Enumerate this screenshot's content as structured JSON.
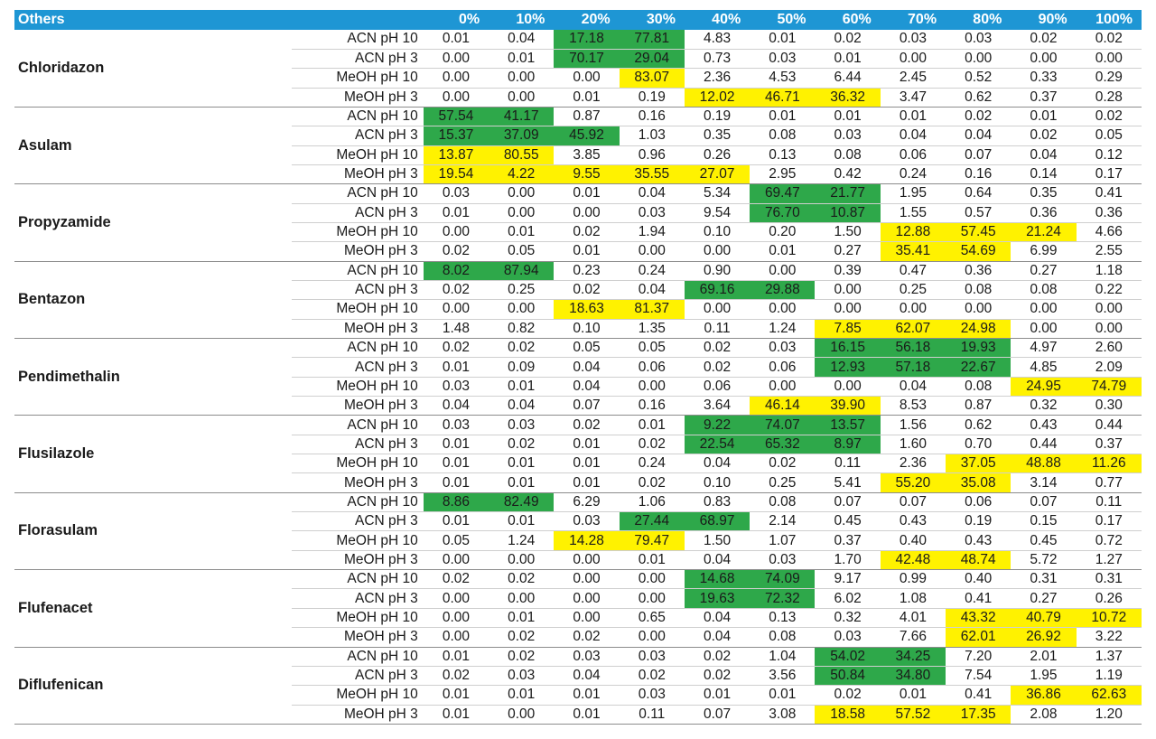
{
  "header": {
    "title": "Others",
    "columns": [
      "0%",
      "10%",
      "20%",
      "30%",
      "40%",
      "50%",
      "60%",
      "70%",
      "80%",
      "90%",
      "100%"
    ]
  },
  "colors": {
    "header_bg": "#1e96d4",
    "green_highlight": "#2ea84a",
    "yellow_highlight": "#fff200"
  },
  "compounds": [
    {
      "name": "Chloridazon",
      "rows": [
        {
          "condition": "ACN pH 10",
          "values": [
            "0.01",
            "0.04",
            "17.18",
            "77.81",
            "4.83",
            "0.01",
            "0.02",
            "0.03",
            "0.03",
            "0.02",
            "0.02"
          ],
          "highlight": [
            "",
            "",
            "g",
            "g",
            "",
            "",
            "",
            "",
            "",
            "",
            ""
          ]
        },
        {
          "condition": "ACN pH 3",
          "values": [
            "0.00",
            "0.01",
            "70.17",
            "29.04",
            "0.73",
            "0.03",
            "0.01",
            "0.00",
            "0.00",
            "0.00",
            "0.00"
          ],
          "highlight": [
            "",
            "",
            "g",
            "g",
            "",
            "",
            "",
            "",
            "",
            "",
            ""
          ]
        },
        {
          "condition": "MeOH pH 10",
          "values": [
            "0.00",
            "0.00",
            "0.00",
            "83.07",
            "2.36",
            "4.53",
            "6.44",
            "2.45",
            "0.52",
            "0.33",
            "0.29"
          ],
          "highlight": [
            "",
            "",
            "",
            "y",
            "",
            "",
            "",
            "",
            "",
            "",
            ""
          ]
        },
        {
          "condition": "MeOH pH 3",
          "values": [
            "0.00",
            "0.00",
            "0.01",
            "0.19",
            "12.02",
            "46.71",
            "36.32",
            "3.47",
            "0.62",
            "0.37",
            "0.28"
          ],
          "highlight": [
            "",
            "",
            "",
            "",
            "y",
            "y",
            "y",
            "",
            "",
            "",
            ""
          ]
        }
      ]
    },
    {
      "name": "Asulam",
      "rows": [
        {
          "condition": "ACN pH 10",
          "values": [
            "57.54",
            "41.17",
            "0.87",
            "0.16",
            "0.19",
            "0.01",
            "0.01",
            "0.01",
            "0.02",
            "0.01",
            "0.02"
          ],
          "highlight": [
            "g",
            "g",
            "",
            "",
            "",
            "",
            "",
            "",
            "",
            "",
            ""
          ]
        },
        {
          "condition": "ACN pH 3",
          "values": [
            "15.37",
            "37.09",
            "45.92",
            "1.03",
            "0.35",
            "0.08",
            "0.03",
            "0.04",
            "0.04",
            "0.02",
            "0.05"
          ],
          "highlight": [
            "g",
            "g",
            "g",
            "",
            "",
            "",
            "",
            "",
            "",
            "",
            ""
          ]
        },
        {
          "condition": "MeOH pH 10",
          "values": [
            "13.87",
            "80.55",
            "3.85",
            "0.96",
            "0.26",
            "0.13",
            "0.08",
            "0.06",
            "0.07",
            "0.04",
            "0.12"
          ],
          "highlight": [
            "y",
            "y",
            "",
            "",
            "",
            "",
            "",
            "",
            "",
            "",
            ""
          ]
        },
        {
          "condition": "MeOH pH 3",
          "values": [
            "19.54",
            "4.22",
            "9.55",
            "35.55",
            "27.07",
            "2.95",
            "0.42",
            "0.24",
            "0.16",
            "0.14",
            "0.17"
          ],
          "highlight": [
            "y",
            "y",
            "y",
            "y",
            "y",
            "",
            "",
            "",
            "",
            "",
            ""
          ]
        }
      ]
    },
    {
      "name": "Propyzamide",
      "rows": [
        {
          "condition": "ACN pH 10",
          "values": [
            "0.03",
            "0.00",
            "0.01",
            "0.04",
            "5.34",
            "69.47",
            "21.77",
            "1.95",
            "0.64",
            "0.35",
            "0.41"
          ],
          "highlight": [
            "",
            "",
            "",
            "",
            "",
            "g",
            "g",
            "",
            "",
            "",
            ""
          ]
        },
        {
          "condition": "ACN pH 3",
          "values": [
            "0.01",
            "0.00",
            "0.00",
            "0.03",
            "9.54",
            "76.70",
            "10.87",
            "1.55",
            "0.57",
            "0.36",
            "0.36"
          ],
          "highlight": [
            "",
            "",
            "",
            "",
            "",
            "g",
            "g",
            "",
            "",
            "",
            ""
          ]
        },
        {
          "condition": "MeOH pH 10",
          "values": [
            "0.00",
            "0.01",
            "0.02",
            "1.94",
            "0.10",
            "0.20",
            "1.50",
            "12.88",
            "57.45",
            "21.24",
            "4.66"
          ],
          "highlight": [
            "",
            "",
            "",
            "",
            "",
            "",
            "",
            "y",
            "y",
            "y",
            ""
          ]
        },
        {
          "condition": "MeOH pH 3",
          "values": [
            "0.02",
            "0.05",
            "0.01",
            "0.00",
            "0.00",
            "0.01",
            "0.27",
            "35.41",
            "54.69",
            "6.99",
            "2.55"
          ],
          "highlight": [
            "",
            "",
            "",
            "",
            "",
            "",
            "",
            "y",
            "y",
            "",
            ""
          ]
        }
      ]
    },
    {
      "name": "Bentazon",
      "rows": [
        {
          "condition": "ACN pH 10",
          "values": [
            "8.02",
            "87.94",
            "0.23",
            "0.24",
            "0.90",
            "0.00",
            "0.39",
            "0.47",
            "0.36",
            "0.27",
            "1.18"
          ],
          "highlight": [
            "g",
            "g",
            "",
            "",
            "",
            "",
            "",
            "",
            "",
            "",
            ""
          ]
        },
        {
          "condition": "ACN pH 3",
          "values": [
            "0.02",
            "0.25",
            "0.02",
            "0.04",
            "69.16",
            "29.88",
            "0.00",
            "0.25",
            "0.08",
            "0.08",
            "0.22"
          ],
          "highlight": [
            "",
            "",
            "",
            "",
            "g",
            "g",
            "",
            "",
            "",
            "",
            ""
          ]
        },
        {
          "condition": "MeOH pH 10",
          "values": [
            "0.00",
            "0.00",
            "18.63",
            "81.37",
            "0.00",
            "0.00",
            "0.00",
            "0.00",
            "0.00",
            "0.00",
            "0.00"
          ],
          "highlight": [
            "",
            "",
            "y",
            "y",
            "",
            "",
            "",
            "",
            "",
            "",
            ""
          ]
        },
        {
          "condition": "MeOH pH 3",
          "values": [
            "1.48",
            "0.82",
            "0.10",
            "1.35",
            "0.11",
            "1.24",
            "7.85",
            "62.07",
            "24.98",
            "0.00",
            "0.00"
          ],
          "highlight": [
            "",
            "",
            "",
            "",
            "",
            "",
            "y",
            "y",
            "y",
            "",
            ""
          ]
        }
      ]
    },
    {
      "name": "Pendimethalin",
      "rows": [
        {
          "condition": "ACN pH 10",
          "values": [
            "0.02",
            "0.02",
            "0.05",
            "0.05",
            "0.02",
            "0.03",
            "16.15",
            "56.18",
            "19.93",
            "4.97",
            "2.60"
          ],
          "highlight": [
            "",
            "",
            "",
            "",
            "",
            "",
            "g",
            "g",
            "g",
            "",
            ""
          ]
        },
        {
          "condition": "ACN pH 3",
          "values": [
            "0.01",
            "0.09",
            "0.04",
            "0.06",
            "0.02",
            "0.06",
            "12.93",
            "57.18",
            "22.67",
            "4.85",
            "2.09"
          ],
          "highlight": [
            "",
            "",
            "",
            "",
            "",
            "",
            "g",
            "g",
            "g",
            "",
            ""
          ]
        },
        {
          "condition": "MeOH pH 10",
          "values": [
            "0.03",
            "0.01",
            "0.04",
            "0.00",
            "0.06",
            "0.00",
            "0.00",
            "0.04",
            "0.08",
            "24.95",
            "74.79"
          ],
          "highlight": [
            "",
            "",
            "",
            "",
            "",
            "",
            "",
            "",
            "",
            "y",
            "y"
          ]
        },
        {
          "condition": "MeOH pH 3",
          "values": [
            "0.04",
            "0.04",
            "0.07",
            "0.16",
            "3.64",
            "46.14",
            "39.90",
            "8.53",
            "0.87",
            "0.32",
            "0.30"
          ],
          "highlight": [
            "",
            "",
            "",
            "",
            "",
            "y",
            "y",
            "",
            "",
            "",
            ""
          ]
        }
      ]
    },
    {
      "name": "Flusilazole",
      "rows": [
        {
          "condition": "ACN pH 10",
          "values": [
            "0.03",
            "0.03",
            "0.02",
            "0.01",
            "9.22",
            "74.07",
            "13.57",
            "1.56",
            "0.62",
            "0.43",
            "0.44"
          ],
          "highlight": [
            "",
            "",
            "",
            "",
            "g",
            "g",
            "g",
            "",
            "",
            "",
            ""
          ]
        },
        {
          "condition": "ACN pH 3",
          "values": [
            "0.01",
            "0.02",
            "0.01",
            "0.02",
            "22.54",
            "65.32",
            "8.97",
            "1.60",
            "0.70",
            "0.44",
            "0.37"
          ],
          "highlight": [
            "",
            "",
            "",
            "",
            "g",
            "g",
            "g",
            "",
            "",
            "",
            ""
          ]
        },
        {
          "condition": "MeOH pH 10",
          "values": [
            "0.01",
            "0.01",
            "0.01",
            "0.24",
            "0.04",
            "0.02",
            "0.11",
            "2.36",
            "37.05",
            "48.88",
            "11.26"
          ],
          "highlight": [
            "",
            "",
            "",
            "",
            "",
            "",
            "",
            "",
            "y",
            "y",
            "y"
          ]
        },
        {
          "condition": "MeOH pH 3",
          "values": [
            "0.01",
            "0.01",
            "0.01",
            "0.02",
            "0.10",
            "0.25",
            "5.41",
            "55.20",
            "35.08",
            "3.14",
            "0.77"
          ],
          "highlight": [
            "",
            "",
            "",
            "",
            "",
            "",
            "",
            "y",
            "y",
            "",
            ""
          ]
        }
      ]
    },
    {
      "name": "Florasulam",
      "rows": [
        {
          "condition": "ACN pH 10",
          "values": [
            "8.86",
            "82.49",
            "6.29",
            "1.06",
            "0.83",
            "0.08",
            "0.07",
            "0.07",
            "0.06",
            "0.07",
            "0.11"
          ],
          "highlight": [
            "g",
            "g",
            "",
            "",
            "",
            "",
            "",
            "",
            "",
            "",
            ""
          ]
        },
        {
          "condition": "ACN pH 3",
          "values": [
            "0.01",
            "0.01",
            "0.03",
            "27.44",
            "68.97",
            "2.14",
            "0.45",
            "0.43",
            "0.19",
            "0.15",
            "0.17"
          ],
          "highlight": [
            "",
            "",
            "",
            "g",
            "g",
            "",
            "",
            "",
            "",
            "",
            ""
          ]
        },
        {
          "condition": "MeOH pH 10",
          "values": [
            "0.05",
            "1.24",
            "14.28",
            "79.47",
            "1.50",
            "1.07",
            "0.37",
            "0.40",
            "0.43",
            "0.45",
            "0.72"
          ],
          "highlight": [
            "",
            "",
            "y",
            "y",
            "",
            "",
            "",
            "",
            "",
            "",
            ""
          ]
        },
        {
          "condition": "MeOH pH 3",
          "values": [
            "0.00",
            "0.00",
            "0.00",
            "0.01",
            "0.04",
            "0.03",
            "1.70",
            "42.48",
            "48.74",
            "5.72",
            "1.27"
          ],
          "highlight": [
            "",
            "",
            "",
            "",
            "",
            "",
            "",
            "y",
            "y",
            "",
            ""
          ]
        }
      ]
    },
    {
      "name": "Flufenacet",
      "rows": [
        {
          "condition": "ACN pH 10",
          "values": [
            "0.02",
            "0.02",
            "0.00",
            "0.00",
            "14.68",
            "74.09",
            "9.17",
            "0.99",
            "0.40",
            "0.31",
            "0.31"
          ],
          "highlight": [
            "",
            "",
            "",
            "",
            "g",
            "g",
            "",
            "",
            "",
            "",
            ""
          ]
        },
        {
          "condition": "ACN pH 3",
          "values": [
            "0.00",
            "0.00",
            "0.00",
            "0.00",
            "19.63",
            "72.32",
            "6.02",
            "1.08",
            "0.41",
            "0.27",
            "0.26"
          ],
          "highlight": [
            "",
            "",
            "",
            "",
            "g",
            "g",
            "",
            "",
            "",
            "",
            ""
          ]
        },
        {
          "condition": "MeOH pH 10",
          "values": [
            "0.00",
            "0.01",
            "0.00",
            "0.65",
            "0.04",
            "0.13",
            "0.32",
            "4.01",
            "43.32",
            "40.79",
            "10.72"
          ],
          "highlight": [
            "",
            "",
            "",
            "",
            "",
            "",
            "",
            "",
            "y",
            "y",
            "y"
          ]
        },
        {
          "condition": "MeOH pH 3",
          "values": [
            "0.00",
            "0.02",
            "0.02",
            "0.00",
            "0.04",
            "0.08",
            "0.03",
            "7.66",
            "62.01",
            "26.92",
            "3.22"
          ],
          "highlight": [
            "",
            "",
            "",
            "",
            "",
            "",
            "",
            "",
            "y",
            "y",
            ""
          ]
        }
      ]
    },
    {
      "name": "Diflufenican",
      "rows": [
        {
          "condition": "ACN pH 10",
          "values": [
            "0.01",
            "0.02",
            "0.03",
            "0.03",
            "0.02",
            "1.04",
            "54.02",
            "34.25",
            "7.20",
            "2.01",
            "1.37"
          ],
          "highlight": [
            "",
            "",
            "",
            "",
            "",
            "",
            "g",
            "g",
            "",
            "",
            ""
          ]
        },
        {
          "condition": "ACN pH 3",
          "values": [
            "0.02",
            "0.03",
            "0.04",
            "0.02",
            "0.02",
            "3.56",
            "50.84",
            "34.80",
            "7.54",
            "1.95",
            "1.19"
          ],
          "highlight": [
            "",
            "",
            "",
            "",
            "",
            "",
            "g",
            "g",
            "",
            "",
            ""
          ]
        },
        {
          "condition": "MeOH pH 10",
          "values": [
            "0.01",
            "0.01",
            "0.01",
            "0.03",
            "0.01",
            "0.01",
            "0.02",
            "0.01",
            "0.41",
            "36.86",
            "62.63"
          ],
          "highlight": [
            "",
            "",
            "",
            "",
            "",
            "",
            "",
            "",
            "",
            "y",
            "y"
          ]
        },
        {
          "condition": "MeOH pH 3",
          "values": [
            "0.01",
            "0.00",
            "0.01",
            "0.11",
            "0.07",
            "3.08",
            "18.58",
            "57.52",
            "17.35",
            "2.08",
            "1.20"
          ],
          "highlight": [
            "",
            "",
            "",
            "",
            "",
            "",
            "y",
            "y",
            "y",
            "",
            ""
          ]
        }
      ]
    }
  ]
}
